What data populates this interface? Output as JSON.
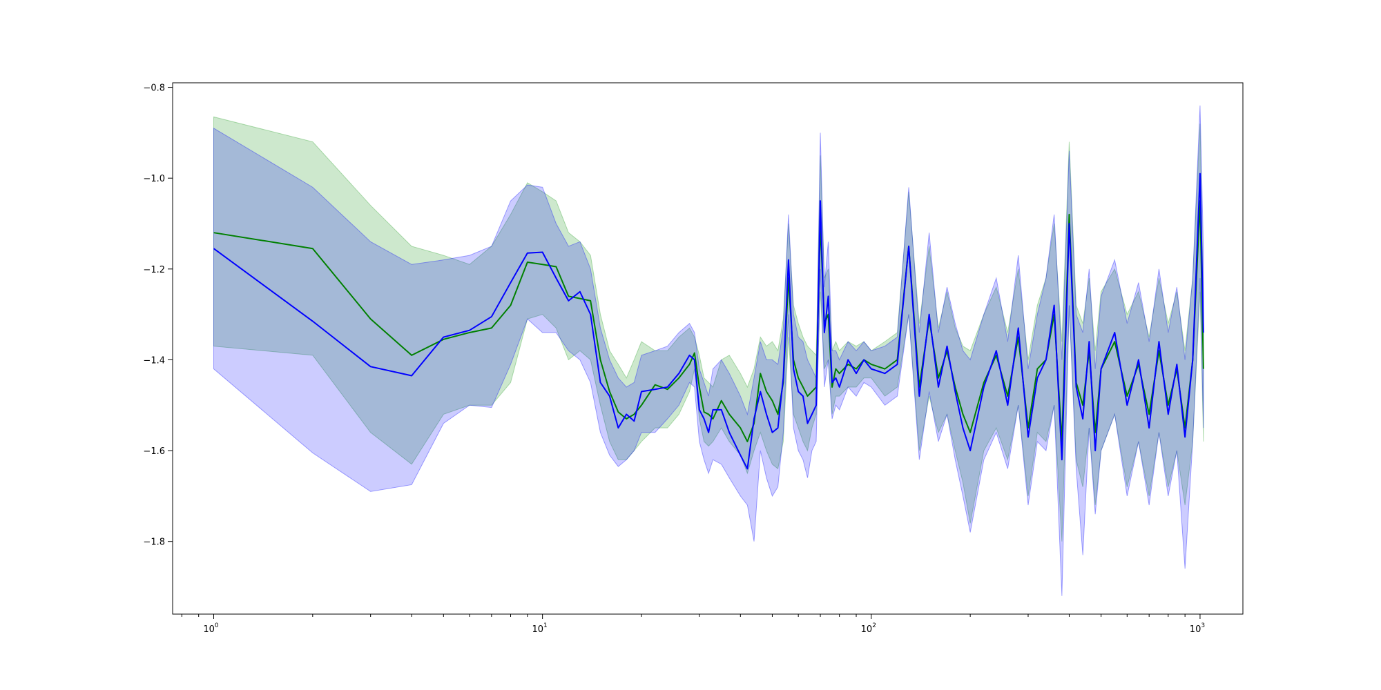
{
  "chart_data": {
    "type": "line",
    "title": "",
    "xlabel": "",
    "ylabel": "",
    "x_scale": "log",
    "xlim": [
      0.75,
      1350
    ],
    "ylim": [
      -1.96,
      -0.79
    ],
    "grid": false,
    "legend": "none",
    "x_ticks": [
      {
        "value": 1,
        "base": "10",
        "exp": "0"
      },
      {
        "value": 10,
        "base": "10",
        "exp": "1"
      },
      {
        "value": 100,
        "base": "10",
        "exp": "2"
      },
      {
        "value": 1000,
        "base": "10",
        "exp": "3"
      }
    ],
    "y_ticks": [
      {
        "value": -1.8,
        "label": "−1.8"
      },
      {
        "value": -1.6,
        "label": "−1.6"
      },
      {
        "value": -1.4,
        "label": "−1.4"
      },
      {
        "value": -1.2,
        "label": "−1.2"
      },
      {
        "value": -1.0,
        "label": "−1.0"
      },
      {
        "value": -0.8,
        "label": "−0.8"
      }
    ],
    "series": [
      {
        "color": "#008000",
        "band_color": "#2ca02c",
        "band_opacity": 0.24,
        "x": [
          1,
          2,
          3,
          4,
          5,
          6,
          7,
          8,
          9,
          10,
          11,
          12,
          13,
          14,
          15,
          16,
          17,
          18,
          19,
          20,
          22,
          24,
          26,
          28,
          29,
          30,
          31,
          32,
          33,
          35,
          37,
          40,
          42,
          44,
          46,
          48,
          50,
          52,
          54,
          56,
          58,
          60,
          62,
          64,
          66,
          68,
          70,
          72,
          74,
          76,
          78,
          80,
          85,
          90,
          95,
          100,
          110,
          120,
          130,
          140,
          150,
          160,
          170,
          180,
          190,
          200,
          220,
          240,
          260,
          280,
          300,
          320,
          340,
          360,
          380,
          400,
          420,
          440,
          460,
          480,
          500,
          550,
          600,
          650,
          700,
          750,
          800,
          850,
          900,
          950,
          1000,
          1024
        ],
        "y": [
          -1.12,
          -1.155,
          -1.31,
          -1.39,
          -1.355,
          -1.34,
          -1.33,
          -1.28,
          -1.185,
          -1.19,
          -1.195,
          -1.26,
          -1.265,
          -1.27,
          -1.4,
          -1.47,
          -1.515,
          -1.53,
          -1.52,
          -1.5,
          -1.455,
          -1.465,
          -1.44,
          -1.41,
          -1.385,
          -1.46,
          -1.515,
          -1.52,
          -1.53,
          -1.49,
          -1.52,
          -1.55,
          -1.58,
          -1.54,
          -1.43,
          -1.47,
          -1.49,
          -1.52,
          -1.45,
          -1.22,
          -1.4,
          -1.44,
          -1.46,
          -1.48,
          -1.47,
          -1.46,
          -1.1,
          -1.32,
          -1.3,
          -1.46,
          -1.42,
          -1.43,
          -1.41,
          -1.42,
          -1.4,
          -1.41,
          -1.42,
          -1.4,
          -1.15,
          -1.46,
          -1.31,
          -1.44,
          -1.38,
          -1.46,
          -1.52,
          -1.56,
          -1.45,
          -1.39,
          -1.48,
          -1.35,
          -1.55,
          -1.42,
          -1.4,
          -1.3,
          -1.58,
          -1.08,
          -1.45,
          -1.5,
          -1.38,
          -1.56,
          -1.42,
          -1.36,
          -1.48,
          -1.41,
          -1.52,
          -1.38,
          -1.5,
          -1.42,
          -1.55,
          -1.4,
          -1.05,
          -1.42
        ],
        "lower": [
          -1.37,
          -1.39,
          -1.56,
          -1.63,
          -1.52,
          -1.5,
          -1.5,
          -1.45,
          -1.31,
          -1.3,
          -1.33,
          -1.4,
          -1.38,
          -1.4,
          -1.5,
          -1.58,
          -1.62,
          -1.62,
          -1.6,
          -1.58,
          -1.55,
          -1.55,
          -1.52,
          -1.47,
          -1.42,
          -1.53,
          -1.58,
          -1.59,
          -1.58,
          -1.55,
          -1.58,
          -1.61,
          -1.65,
          -1.6,
          -1.56,
          -1.6,
          -1.63,
          -1.64,
          -1.58,
          -1.35,
          -1.52,
          -1.55,
          -1.58,
          -1.6,
          -1.55,
          -1.52,
          -1.25,
          -1.42,
          -1.4,
          -1.52,
          -1.48,
          -1.48,
          -1.46,
          -1.46,
          -1.44,
          -1.44,
          -1.48,
          -1.46,
          -1.3,
          -1.6,
          -1.48,
          -1.56,
          -1.52,
          -1.6,
          -1.67,
          -1.76,
          -1.6,
          -1.55,
          -1.62,
          -1.5,
          -1.7,
          -1.56,
          -1.58,
          -1.5,
          -1.8,
          -1.28,
          -1.62,
          -1.68,
          -1.55,
          -1.72,
          -1.6,
          -1.52,
          -1.68,
          -1.58,
          -1.7,
          -1.56,
          -1.68,
          -1.6,
          -1.72,
          -1.58,
          -1.25,
          -1.58
        ],
        "upper": [
          -0.865,
          -0.92,
          -1.06,
          -1.15,
          -1.17,
          -1.19,
          -1.15,
          -1.08,
          -1.01,
          -1.03,
          -1.05,
          -1.12,
          -1.14,
          -1.17,
          -1.3,
          -1.38,
          -1.41,
          -1.44,
          -1.4,
          -1.36,
          -1.38,
          -1.38,
          -1.35,
          -1.33,
          -1.35,
          -1.39,
          -1.44,
          -1.45,
          -1.46,
          -1.4,
          -1.39,
          -1.43,
          -1.46,
          -1.42,
          -1.35,
          -1.37,
          -1.36,
          -1.38,
          -1.31,
          -1.1,
          -1.28,
          -1.32,
          -1.35,
          -1.37,
          -1.38,
          -1.39,
          -0.95,
          -1.22,
          -1.2,
          -1.38,
          -1.36,
          -1.38,
          -1.36,
          -1.37,
          -1.36,
          -1.38,
          -1.36,
          -1.34,
          -1.03,
          -1.32,
          -1.15,
          -1.33,
          -1.25,
          -1.33,
          -1.37,
          -1.38,
          -1.3,
          -1.24,
          -1.34,
          -1.2,
          -1.4,
          -1.28,
          -1.22,
          -1.1,
          -1.36,
          -0.92,
          -1.28,
          -1.32,
          -1.22,
          -1.38,
          -1.25,
          -1.2,
          -1.3,
          -1.25,
          -1.35,
          -1.22,
          -1.32,
          -1.25,
          -1.38,
          -1.22,
          -0.88,
          -1.27
        ]
      },
      {
        "color": "#0000ff",
        "band_color": "#0000ff",
        "band_opacity": 0.2,
        "x": [
          1,
          2,
          3,
          4,
          5,
          6,
          7,
          8,
          9,
          10,
          11,
          12,
          13,
          14,
          15,
          16,
          17,
          18,
          19,
          20,
          22,
          24,
          26,
          28,
          29,
          30,
          31,
          32,
          33,
          35,
          37,
          40,
          42,
          44,
          46,
          48,
          50,
          52,
          54,
          56,
          58,
          60,
          62,
          64,
          66,
          68,
          70,
          72,
          74,
          76,
          78,
          80,
          85,
          90,
          95,
          100,
          110,
          120,
          130,
          140,
          150,
          160,
          170,
          180,
          190,
          200,
          220,
          240,
          260,
          280,
          300,
          320,
          340,
          360,
          380,
          400,
          420,
          440,
          460,
          480,
          500,
          550,
          600,
          650,
          700,
          750,
          800,
          850,
          900,
          950,
          1000,
          1024
        ],
        "y": [
          -1.155,
          -1.315,
          -1.415,
          -1.435,
          -1.35,
          -1.335,
          -1.305,
          -1.23,
          -1.165,
          -1.163,
          -1.22,
          -1.27,
          -1.25,
          -1.3,
          -1.45,
          -1.48,
          -1.55,
          -1.52,
          -1.535,
          -1.47,
          -1.465,
          -1.46,
          -1.43,
          -1.39,
          -1.4,
          -1.51,
          -1.53,
          -1.56,
          -1.51,
          -1.51,
          -1.56,
          -1.61,
          -1.64,
          -1.53,
          -1.47,
          -1.52,
          -1.56,
          -1.55,
          -1.44,
          -1.18,
          -1.42,
          -1.47,
          -1.48,
          -1.54,
          -1.52,
          -1.5,
          -1.05,
          -1.34,
          -1.26,
          -1.45,
          -1.44,
          -1.46,
          -1.4,
          -1.43,
          -1.4,
          -1.42,
          -1.43,
          -1.41,
          -1.15,
          -1.48,
          -1.3,
          -1.46,
          -1.37,
          -1.47,
          -1.55,
          -1.6,
          -1.46,
          -1.38,
          -1.5,
          -1.33,
          -1.57,
          -1.44,
          -1.4,
          -1.28,
          -1.62,
          -1.1,
          -1.46,
          -1.53,
          -1.36,
          -1.6,
          -1.42,
          -1.34,
          -1.5,
          -1.4,
          -1.55,
          -1.36,
          -1.52,
          -1.41,
          -1.57,
          -1.4,
          -0.99,
          -1.34
        ],
        "lower": [
          -1.42,
          -1.605,
          -1.69,
          -1.675,
          -1.54,
          -1.5,
          -1.505,
          -1.41,
          -1.31,
          -1.34,
          -1.34,
          -1.38,
          -1.4,
          -1.45,
          -1.56,
          -1.61,
          -1.635,
          -1.62,
          -1.6,
          -1.56,
          -1.56,
          -1.53,
          -1.5,
          -1.45,
          -1.46,
          -1.58,
          -1.62,
          -1.65,
          -1.62,
          -1.63,
          -1.66,
          -1.7,
          -1.72,
          -1.8,
          -1.6,
          -1.66,
          -1.7,
          -1.68,
          -1.56,
          -1.3,
          -1.55,
          -1.6,
          -1.62,
          -1.66,
          -1.6,
          -1.58,
          -1.2,
          -1.46,
          -1.4,
          -1.53,
          -1.5,
          -1.51,
          -1.46,
          -1.48,
          -1.45,
          -1.46,
          -1.5,
          -1.48,
          -1.3,
          -1.62,
          -1.47,
          -1.58,
          -1.52,
          -1.62,
          -1.7,
          -1.78,
          -1.62,
          -1.56,
          -1.64,
          -1.5,
          -1.72,
          -1.58,
          -1.6,
          -1.5,
          -1.92,
          -1.28,
          -1.64,
          -1.83,
          -1.55,
          -1.74,
          -1.6,
          -1.52,
          -1.7,
          -1.58,
          -1.72,
          -1.56,
          -1.7,
          -1.6,
          -1.86,
          -1.58,
          -1.22,
          -1.55
        ],
        "upper": [
          -0.89,
          -1.02,
          -1.14,
          -1.19,
          -1.18,
          -1.17,
          -1.15,
          -1.05,
          -1.015,
          -1.02,
          -1.1,
          -1.15,
          -1.14,
          -1.2,
          -1.33,
          -1.4,
          -1.44,
          -1.46,
          -1.45,
          -1.39,
          -1.38,
          -1.37,
          -1.34,
          -1.32,
          -1.34,
          -1.42,
          -1.45,
          -1.48,
          -1.42,
          -1.4,
          -1.43,
          -1.48,
          -1.52,
          -1.44,
          -1.36,
          -1.4,
          -1.4,
          -1.41,
          -1.33,
          -1.08,
          -1.3,
          -1.35,
          -1.36,
          -1.4,
          -1.42,
          -1.44,
          -0.9,
          -1.24,
          -1.14,
          -1.38,
          -1.38,
          -1.4,
          -1.36,
          -1.38,
          -1.36,
          -1.38,
          -1.37,
          -1.35,
          -1.02,
          -1.34,
          -1.12,
          -1.34,
          -1.24,
          -1.32,
          -1.38,
          -1.4,
          -1.3,
          -1.22,
          -1.36,
          -1.17,
          -1.42,
          -1.3,
          -1.22,
          -1.08,
          -1.4,
          -0.94,
          -1.3,
          -1.34,
          -1.2,
          -1.42,
          -1.26,
          -1.18,
          -1.32,
          -1.23,
          -1.36,
          -1.2,
          -1.34,
          -1.24,
          -1.4,
          -1.22,
          -0.84,
          -1.16
        ]
      }
    ]
  }
}
